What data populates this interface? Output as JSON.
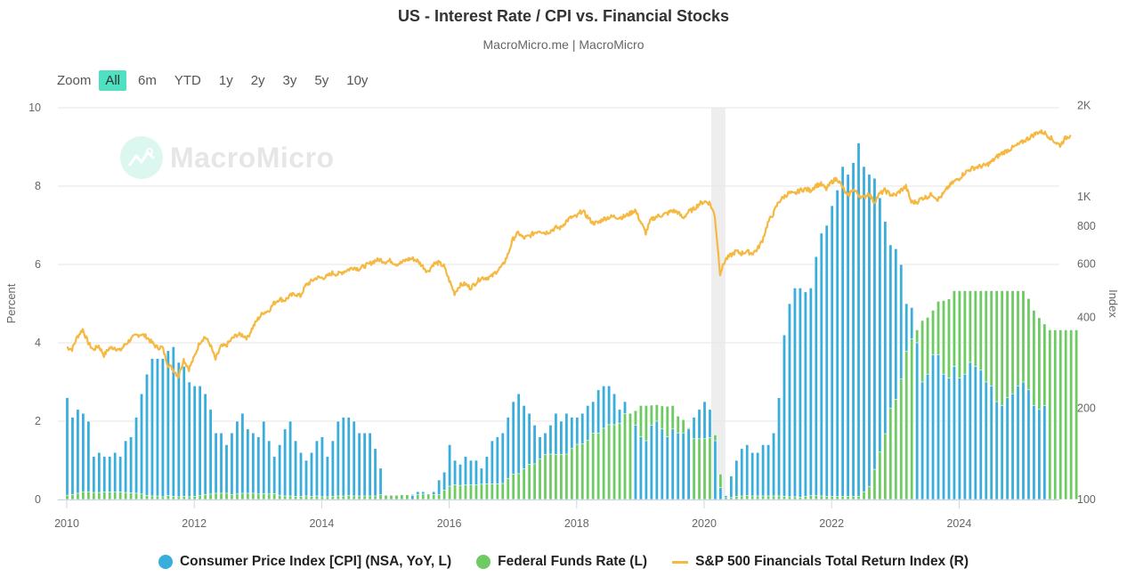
{
  "header": {
    "title": "US - Interest Rate / CPI vs. Financial Stocks",
    "subtitle": "MacroMicro.me | MacroMicro"
  },
  "zoom": {
    "label": "Zoom",
    "buttons": [
      "All",
      "6m",
      "YTD",
      "1y",
      "2y",
      "3y",
      "5y",
      "10y"
    ],
    "active": "All"
  },
  "watermark": "MacroMicro",
  "colors": {
    "cpi": "#3aaedb",
    "ffr": "#6ecb63",
    "index": "#f5b841",
    "recession": "#eeeeee",
    "grid": "#e6e6e6",
    "zoom_active": "#4fe0c1"
  },
  "legend": [
    {
      "name": "Consumer Price Index [CPI] (NSA, YoY, L)",
      "color": "#3aaedb",
      "symbol": "circle"
    },
    {
      "name": "Federal Funds Rate (L)",
      "color": "#6ecb63",
      "symbol": "circle"
    },
    {
      "name": "S&P 500 Financials Total Return Index (R)",
      "color": "#f5b841",
      "symbol": "line"
    }
  ],
  "chart_data": {
    "type": "bar+line",
    "title": "US - Interest Rate / CPI vs. Financial Stocks",
    "subtitle": "MacroMicro.me | MacroMicro",
    "x_start": "2010-01",
    "x_frequency": "monthly",
    "x_ticks": [
      "2010",
      "2012",
      "2014",
      "2016",
      "2018",
      "2020",
      "2022",
      "2024"
    ],
    "y_left": {
      "label": "Percent",
      "range": [
        0,
        10
      ],
      "ticks": [
        "0",
        "2",
        "4",
        "6",
        "8",
        "10"
      ]
    },
    "y_right": {
      "label": "Index",
      "scale": "log",
      "range": [
        100,
        2000
      ],
      "ticks": [
        "100",
        "200",
        "400",
        "600",
        "800",
        "1K",
        "2K"
      ],
      "tick_values": [
        100,
        200,
        400,
        600,
        800,
        1000,
        2000
      ]
    },
    "recession_band": {
      "from": "2020-02",
      "to": "2020-04"
    },
    "grid": true,
    "legend_position": "bottom",
    "series": [
      {
        "name": "Consumer Price Index [CPI] (NSA, YoY, L)",
        "type": "bar",
        "axis": "left",
        "values": [
          2.6,
          2.1,
          2.3,
          2.2,
          2.0,
          1.1,
          1.2,
          1.1,
          1.1,
          1.2,
          1.1,
          1.5,
          1.6,
          2.1,
          2.7,
          3.2,
          3.6,
          3.6,
          3.6,
          3.8,
          3.9,
          3.5,
          3.4,
          3.0,
          2.9,
          2.9,
          2.7,
          2.3,
          1.7,
          1.7,
          1.4,
          1.7,
          2.0,
          2.2,
          1.8,
          1.7,
          1.6,
          2.0,
          1.5,
          1.1,
          1.4,
          1.8,
          2.0,
          1.5,
          1.2,
          1.0,
          1.2,
          1.5,
          1.6,
          1.1,
          1.5,
          2.0,
          2.1,
          2.1,
          2.0,
          1.7,
          1.7,
          1.7,
          1.3,
          0.8,
          -0.1,
          0.0,
          -0.1,
          -0.2,
          0.0,
          0.1,
          0.2,
          0.2,
          0.0,
          0.2,
          0.5,
          0.7,
          1.4,
          1.0,
          0.9,
          1.1,
          1.0,
          1.0,
          0.8,
          1.1,
          1.5,
          1.6,
          1.7,
          2.1,
          2.5,
          2.7,
          2.4,
          2.2,
          1.9,
          1.6,
          1.7,
          1.9,
          2.2,
          2.0,
          2.2,
          2.1,
          2.1,
          2.2,
          2.4,
          2.5,
          2.8,
          2.9,
          2.9,
          2.7,
          2.3,
          2.5,
          2.2,
          1.9,
          1.6,
          1.5,
          1.9,
          2.0,
          1.8,
          1.6,
          1.8,
          1.7,
          1.7,
          1.8,
          2.1,
          2.3,
          2.5,
          2.3,
          1.5,
          0.3,
          0.1,
          0.6,
          1.0,
          1.3,
          1.4,
          1.2,
          1.2,
          1.4,
          1.4,
          1.7,
          2.6,
          4.2,
          5.0,
          5.4,
          5.4,
          5.3,
          5.4,
          6.2,
          6.8,
          7.0,
          7.5,
          7.9,
          8.5,
          8.3,
          8.6,
          9.1,
          8.5,
          8.3,
          8.2,
          7.7,
          7.1,
          6.5,
          6.4,
          6.0,
          5.0,
          4.9,
          4.0,
          3.0,
          3.2,
          3.7,
          3.7,
          3.2,
          3.1,
          3.4,
          3.1,
          3.2,
          3.5,
          3.4,
          3.3,
          3.0,
          2.9,
          2.5,
          2.4,
          2.6,
          2.7,
          2.9,
          3.0,
          2.8,
          2.4,
          2.3,
          2.4
        ],
        "color": "#3aaedb"
      },
      {
        "name": "Federal Funds Rate (L)",
        "type": "bar",
        "axis": "left",
        "values": [
          0.11,
          0.13,
          0.16,
          0.2,
          0.2,
          0.18,
          0.18,
          0.19,
          0.19,
          0.19,
          0.19,
          0.18,
          0.17,
          0.16,
          0.14,
          0.1,
          0.09,
          0.09,
          0.07,
          0.1,
          0.08,
          0.07,
          0.08,
          0.07,
          0.08,
          0.1,
          0.13,
          0.14,
          0.16,
          0.16,
          0.16,
          0.13,
          0.14,
          0.16,
          0.16,
          0.16,
          0.14,
          0.15,
          0.14,
          0.15,
          0.11,
          0.09,
          0.09,
          0.08,
          0.08,
          0.09,
          0.08,
          0.09,
          0.07,
          0.07,
          0.08,
          0.09,
          0.09,
          0.1,
          0.09,
          0.09,
          0.09,
          0.09,
          0.09,
          0.12,
          0.11,
          0.11,
          0.11,
          0.12,
          0.12,
          0.13,
          0.13,
          0.14,
          0.14,
          0.12,
          0.12,
          0.24,
          0.34,
          0.38,
          0.36,
          0.37,
          0.37,
          0.38,
          0.39,
          0.4,
          0.4,
          0.4,
          0.41,
          0.54,
          0.65,
          0.66,
          0.79,
          0.9,
          0.91,
          1.04,
          1.15,
          1.16,
          1.15,
          1.15,
          1.16,
          1.3,
          1.41,
          1.42,
          1.51,
          1.69,
          1.7,
          1.82,
          1.91,
          1.91,
          1.95,
          2.19,
          2.2,
          2.27,
          2.4,
          2.4,
          2.41,
          2.42,
          2.39,
          2.38,
          2.4,
          2.13,
          2.04,
          1.83,
          1.55,
          1.55,
          1.55,
          1.58,
          1.65,
          0.65,
          0.05,
          0.05,
          0.08,
          0.09,
          0.1,
          0.09,
          0.09,
          0.09,
          0.09,
          0.09,
          0.09,
          0.08,
          0.07,
          0.07,
          0.06,
          0.08,
          0.1,
          0.1,
          0.09,
          0.08,
          0.08,
          0.08,
          0.08,
          0.08,
          0.08,
          0.08,
          0.2,
          0.33,
          0.77,
          1.21,
          1.68,
          2.33,
          2.56,
          3.08,
          3.78,
          4.1,
          4.33,
          4.57,
          4.65,
          4.83,
          5.06,
          5.08,
          5.12,
          5.33,
          5.33,
          5.33,
          5.33,
          5.33,
          5.33,
          5.33,
          5.33,
          5.33,
          5.33,
          5.33,
          5.33,
          5.33,
          5.33,
          5.13,
          4.83,
          4.64,
          4.48,
          4.33,
          4.33,
          4.33,
          4.33,
          4.33,
          4.33
        ],
        "color": "#6ecb63"
      },
      {
        "name": "S&P 500 Financials Total Return Index (R)",
        "type": "line",
        "axis": "right",
        "x_frequency": "monthly",
        "values": [
          318,
          314,
          345,
          365,
          330,
          312,
          322,
          300,
          316,
          318,
          310,
          325,
          338,
          348,
          352,
          345,
          330,
          318,
          318,
          280,
          270,
          255,
          290,
          270,
          295,
          330,
          345,
          325,
          290,
          320,
          322,
          338,
          350,
          350,
          342,
          370,
          395,
          415,
          420,
          445,
          460,
          455,
          470,
          478,
          470,
          510,
          525,
          540,
          540,
          545,
          560,
          555,
          565,
          575,
          585,
          578,
          590,
          600,
          615,
          620,
          610,
          615,
          600,
          605,
          620,
          625,
          615,
          590,
          565,
          600,
          605,
          590,
          530,
          480,
          510,
          515,
          500,
          520,
          540,
          540,
          545,
          570,
          590,
          640,
          725,
          760,
          730,
          740,
          760,
          775,
          760,
          770,
          790,
          790,
          830,
          855,
          860,
          900,
          860,
          820,
          820,
          845,
          855,
          860,
          855,
          860,
          880,
          905,
          830,
          760,
          840,
          860,
          870,
          880,
          900,
          890,
          850,
          890,
          910,
          945,
          965,
          955,
          870,
          560,
          620,
          640,
          660,
          650,
          660,
          650,
          670,
          720,
          820,
          880,
          960,
          1000,
          1030,
          1020,
          1050,
          1060,
          1050,
          1090,
          1100,
          1060,
          1120,
          1150,
          1080,
          1000,
          1060,
          1020,
          990,
          1030,
          960,
          1020,
          1050,
          1020,
          1010,
          1050,
          1080,
          960,
          960,
          990,
          1000,
          1020,
          980,
          1020,
          1080,
          1120,
          1150,
          1200,
          1230,
          1250,
          1260,
          1270,
          1300,
          1350,
          1390,
          1420,
          1450,
          1480,
          1520,
          1560,
          1600,
          1640,
          1630,
          1580,
          1520,
          1480,
          1560,
          1600
        ],
        "color": "#f5b841"
      }
    ]
  }
}
